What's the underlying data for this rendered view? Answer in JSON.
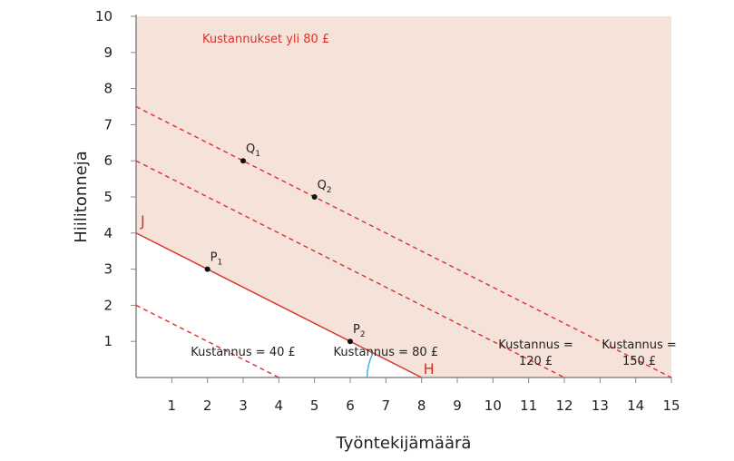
{
  "chart_data": {
    "type": "line",
    "title": "",
    "xlabel": "Työntekijämäärä",
    "ylabel": "Hiilitonneja",
    "xlim": [
      0,
      15
    ],
    "ylim": [
      0,
      10
    ],
    "xticks": [
      "1",
      "2",
      "3",
      "4",
      "5",
      "6",
      "7",
      "8",
      "9",
      "10",
      "11",
      "12",
      "13",
      "14",
      "15"
    ],
    "yticks": [
      "1",
      "2",
      "3",
      "4",
      "5",
      "6",
      "7",
      "8",
      "9",
      "10"
    ],
    "grid": false,
    "shaded_region": {
      "label": "Kustannukset yli 80 £",
      "color": "#f5e3da",
      "description_of_bound": "above cost 80 line"
    },
    "series": [
      {
        "name": "Kustannus = 40 £",
        "style": "dashed",
        "color": "#d8312a",
        "x": [
          0,
          4
        ],
        "y": [
          2,
          0
        ],
        "label_at": [
          3,
          0.7
        ]
      },
      {
        "name": "Kustannus = 80 £",
        "style": "solid",
        "color": "#d8312a",
        "x": [
          0,
          8
        ],
        "y": [
          4,
          0
        ],
        "label_at": [
          7,
          0.7
        ]
      },
      {
        "name": "Kustannus = 120 £",
        "style": "dashed",
        "color": "#d8312a",
        "x": [
          0,
          12
        ],
        "y": [
          6,
          0
        ],
        "label_at": [
          11.2,
          0.9
        ]
      },
      {
        "name": "Kustannus = 150 £",
        "style": "dashed",
        "color": "#d8312a",
        "x": [
          0,
          15
        ],
        "y": [
          7.5,
          0
        ],
        "label_at": [
          14.1,
          0.9
        ]
      }
    ],
    "series_labels": [
      {
        "lines": [
          "Kustannus = 40 £"
        ]
      },
      {
        "lines": [
          "Kustannus = 80 £"
        ]
      },
      {
        "lines": [
          "Kustannus =",
          "120 £"
        ]
      },
      {
        "lines": [
          "Kustannus =",
          "150 £"
        ]
      }
    ],
    "points": [
      {
        "name": "P",
        "sub": "1",
        "x": 2,
        "y": 3
      },
      {
        "name": "P",
        "sub": "2",
        "x": 6,
        "y": 1
      },
      {
        "name": "Q",
        "sub": "1",
        "x": 3,
        "y": 6
      },
      {
        "name": "Q",
        "sub": "2",
        "x": 5,
        "y": 5
      }
    ],
    "endpoint_labels": [
      {
        "text": "J",
        "x": 0,
        "y": 4
      },
      {
        "text": "H",
        "x": 8,
        "y": 0
      }
    ],
    "angle_marker": {
      "at": [
        8,
        0
      ],
      "color": "#3aaed0"
    }
  }
}
